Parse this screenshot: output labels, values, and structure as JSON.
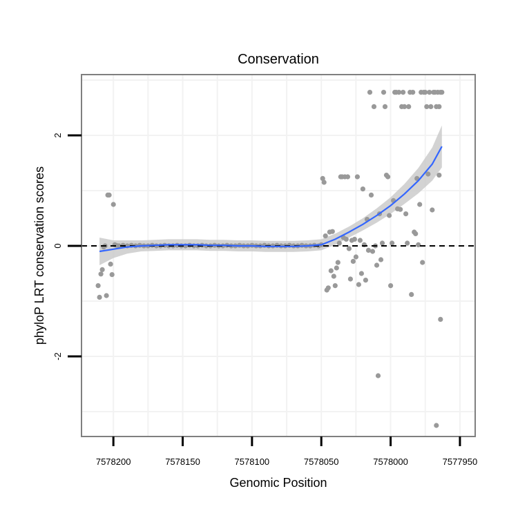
{
  "chart_data": {
    "type": "scatter",
    "title": "Conservation",
    "xlabel": "Genomic Position",
    "ylabel": "phyloP LRT conservation scores",
    "xlim": [
      7578223,
      7577939
    ],
    "ylim": [
      -3.45,
      3.1
    ],
    "x_reversed": true,
    "x_ticks": [
      7578200,
      7578150,
      7578100,
      7578050,
      7578000,
      7577950
    ],
    "x_tick_labels": [
      "7578200",
      "7578150",
      "7578100",
      "7578050",
      "7578000",
      "7577950"
    ],
    "y_ticks": [
      -2,
      0,
      2
    ],
    "y_tick_labels": [
      "-2",
      "0",
      "2"
    ],
    "reference_line": {
      "y": 0,
      "style": "dashed"
    },
    "colors": {
      "points": "#999999",
      "smooth": "#3366ff",
      "ribbon": "#c8c8c8",
      "grid": "#f2f2f2",
      "frame": "#7f7f7f"
    },
    "points": [
      {
        "x": 7578211,
        "y": -0.72
      },
      {
        "x": 7578210,
        "y": -0.93
      },
      {
        "x": 7578209,
        "y": -0.51
      },
      {
        "x": 7578208,
        "y": -0.43
      },
      {
        "x": 7578207,
        "y": -0.02
      },
      {
        "x": 7578206,
        "y": 0.0
      },
      {
        "x": 7578205,
        "y": -0.9
      },
      {
        "x": 7578204,
        "y": 0.92
      },
      {
        "x": 7578203,
        "y": 0.92
      },
      {
        "x": 7578202,
        "y": -0.33
      },
      {
        "x": 7578201,
        "y": -0.52
      },
      {
        "x": 7578200,
        "y": 0.75
      },
      {
        "x": 7578199,
        "y": 0.02
      },
      {
        "x": 7578198,
        "y": 0.01
      },
      {
        "x": 7578196,
        "y": 0.0
      },
      {
        "x": 7578193,
        "y": 0.01
      },
      {
        "x": 7578190,
        "y": 0.0
      },
      {
        "x": 7578187,
        "y": 0.01
      },
      {
        "x": 7578184,
        "y": 0.0
      },
      {
        "x": 7578181,
        "y": 0.01
      },
      {
        "x": 7578178,
        "y": 0.0
      },
      {
        "x": 7578175,
        "y": 0.0
      },
      {
        "x": 7578172,
        "y": 0.01
      },
      {
        "x": 7578169,
        "y": 0.0
      },
      {
        "x": 7578166,
        "y": 0.0
      },
      {
        "x": 7578163,
        "y": 0.01
      },
      {
        "x": 7578160,
        "y": 0.0
      },
      {
        "x": 7578157,
        "y": 0.0
      },
      {
        "x": 7578154,
        "y": 0.01
      },
      {
        "x": 7578151,
        "y": 0.0
      },
      {
        "x": 7578148,
        "y": 0.0
      },
      {
        "x": 7578145,
        "y": 0.01
      },
      {
        "x": 7578142,
        "y": 0.0
      },
      {
        "x": 7578139,
        "y": 0.0
      },
      {
        "x": 7578136,
        "y": 0.01
      },
      {
        "x": 7578133,
        "y": 0.0
      },
      {
        "x": 7578130,
        "y": 0.0
      },
      {
        "x": 7578127,
        "y": 0.01
      },
      {
        "x": 7578124,
        "y": 0.0
      },
      {
        "x": 7578121,
        "y": 0.0
      },
      {
        "x": 7578118,
        "y": 0.01
      },
      {
        "x": 7578115,
        "y": 0.0
      },
      {
        "x": 7578112,
        "y": 0.0
      },
      {
        "x": 7578109,
        "y": 0.01
      },
      {
        "x": 7578106,
        "y": 0.0
      },
      {
        "x": 7578103,
        "y": 0.0
      },
      {
        "x": 7578100,
        "y": 0.01
      },
      {
        "x": 7578097,
        "y": 0.0
      },
      {
        "x": 7578094,
        "y": 0.0
      },
      {
        "x": 7578091,
        "y": 0.01
      },
      {
        "x": 7578088,
        "y": 0.0
      },
      {
        "x": 7578085,
        "y": 0.0
      },
      {
        "x": 7578082,
        "y": 0.01
      },
      {
        "x": 7578079,
        "y": 0.0
      },
      {
        "x": 7578076,
        "y": 0.0
      },
      {
        "x": 7578073,
        "y": 0.01
      },
      {
        "x": 7578070,
        "y": 0.0
      },
      {
        "x": 7578067,
        "y": 0.0
      },
      {
        "x": 7578064,
        "y": 0.01
      },
      {
        "x": 7578061,
        "y": 0.0
      },
      {
        "x": 7578058,
        "y": 0.0
      },
      {
        "x": 7578055,
        "y": 0.01
      },
      {
        "x": 7578052,
        "y": 0.0
      },
      {
        "x": 7578050,
        "y": 0.02
      },
      {
        "x": 7578049,
        "y": 1.22
      },
      {
        "x": 7578048,
        "y": 1.15
      },
      {
        "x": 7578047,
        "y": 0.18
      },
      {
        "x": 7578046,
        "y": -0.8
      },
      {
        "x": 7578045,
        "y": -0.76
      },
      {
        "x": 7578044,
        "y": 0.25
      },
      {
        "x": 7578043,
        "y": -0.45
      },
      {
        "x": 7578042,
        "y": 0.26
      },
      {
        "x": 7578041,
        "y": -0.55
      },
      {
        "x": 7578040,
        "y": -0.72
      },
      {
        "x": 7578039,
        "y": -0.4
      },
      {
        "x": 7578038,
        "y": -0.3
      },
      {
        "x": 7578037,
        "y": 0.05
      },
      {
        "x": 7578036,
        "y": 1.25
      },
      {
        "x": 7578035,
        "y": 1.25
      },
      {
        "x": 7578034,
        "y": 0.15
      },
      {
        "x": 7578033,
        "y": 1.25
      },
      {
        "x": 7578032,
        "y": 0.12
      },
      {
        "x": 7578031,
        "y": 1.25
      },
      {
        "x": 7578030,
        "y": -0.05
      },
      {
        "x": 7578029,
        "y": -0.6
      },
      {
        "x": 7578028,
        "y": 0.1
      },
      {
        "x": 7578027,
        "y": -0.28
      },
      {
        "x": 7578026,
        "y": 0.12
      },
      {
        "x": 7578025,
        "y": -0.2
      },
      {
        "x": 7578024,
        "y": 1.25
      },
      {
        "x": 7578023,
        "y": -0.7
      },
      {
        "x": 7578022,
        "y": 0.1
      },
      {
        "x": 7578021,
        "y": -0.5
      },
      {
        "x": 7578020,
        "y": 1.03
      },
      {
        "x": 7578019,
        "y": 0.02
      },
      {
        "x": 7578018,
        "y": -0.62
      },
      {
        "x": 7578017,
        "y": 0.48
      },
      {
        "x": 7578016,
        "y": -0.08
      },
      {
        "x": 7578015,
        "y": 2.78
      },
      {
        "x": 7578014,
        "y": 0.92
      },
      {
        "x": 7578013,
        "y": -0.1
      },
      {
        "x": 7578012,
        "y": 2.52
      },
      {
        "x": 7578011,
        "y": 0.0
      },
      {
        "x": 7578010,
        "y": -0.35
      },
      {
        "x": 7578009,
        "y": -2.35
      },
      {
        "x": 7578008,
        "y": 0.58
      },
      {
        "x": 7578007,
        "y": -0.25
      },
      {
        "x": 7578006,
        "y": 0.05
      },
      {
        "x": 7578005,
        "y": 2.78
      },
      {
        "x": 7578004,
        "y": 2.52
      },
      {
        "x": 7578003,
        "y": 1.28
      },
      {
        "x": 7578002,
        "y": 1.25
      },
      {
        "x": 7578001,
        "y": 0.55
      },
      {
        "x": 7578000,
        "y": -0.72
      },
      {
        "x": 7577999,
        "y": 0.05
      },
      {
        "x": 7577998,
        "y": 0.82
      },
      {
        "x": 7577997,
        "y": 2.78
      },
      {
        "x": 7577996,
        "y": 2.78
      },
      {
        "x": 7577995,
        "y": 0.67
      },
      {
        "x": 7577994,
        "y": 2.78
      },
      {
        "x": 7577993,
        "y": 0.66
      },
      {
        "x": 7577992,
        "y": 2.52
      },
      {
        "x": 7577991,
        "y": 2.78
      },
      {
        "x": 7577990,
        "y": 2.52
      },
      {
        "x": 7577989,
        "y": 0.58
      },
      {
        "x": 7577988,
        "y": 0.05
      },
      {
        "x": 7577987,
        "y": 2.52
      },
      {
        "x": 7577986,
        "y": 2.78
      },
      {
        "x": 7577985,
        "y": -0.88
      },
      {
        "x": 7577984,
        "y": 2.78
      },
      {
        "x": 7577983,
        "y": 0.25
      },
      {
        "x": 7577982,
        "y": 0.22
      },
      {
        "x": 7577981,
        "y": 1.22
      },
      {
        "x": 7577980,
        "y": 0.02
      },
      {
        "x": 7577979,
        "y": 0.75
      },
      {
        "x": 7577978,
        "y": 2.78
      },
      {
        "x": 7577977,
        "y": -0.3
      },
      {
        "x": 7577976,
        "y": 2.78
      },
      {
        "x": 7577975,
        "y": 2.78
      },
      {
        "x": 7577974,
        "y": 2.52
      },
      {
        "x": 7577973,
        "y": 1.3
      },
      {
        "x": 7577972,
        "y": 2.78
      },
      {
        "x": 7577971,
        "y": 2.52
      },
      {
        "x": 7577970,
        "y": 0.65
      },
      {
        "x": 7577969,
        "y": 2.78
      },
      {
        "x": 7577968,
        "y": 2.78
      },
      {
        "x": 7577967,
        "y": 2.52
      },
      {
        "x": 7577967,
        "y": -3.25
      },
      {
        "x": 7577966,
        "y": 2.78
      },
      {
        "x": 7577965,
        "y": 2.52
      },
      {
        "x": 7577965,
        "y": 1.28
      },
      {
        "x": 7577964,
        "y": 2.78
      },
      {
        "x": 7577964,
        "y": -1.33
      },
      {
        "x": 7577963,
        "y": 2.78
      }
    ],
    "smooth": {
      "x": [
        7578210,
        7578200,
        7578190,
        7578180,
        7578170,
        7578160,
        7578150,
        7578140,
        7578130,
        7578120,
        7578110,
        7578100,
        7578090,
        7578080,
        7578070,
        7578060,
        7578050,
        7578040,
        7578030,
        7578020,
        7578010,
        7578000,
        7577990,
        7577980,
        7577970,
        7577963
      ],
      "y": [
        -0.1,
        -0.06,
        -0.02,
        0.0,
        0.01,
        0.02,
        0.02,
        0.02,
        0.01,
        0.01,
        0.0,
        0.0,
        -0.01,
        -0.01,
        -0.01,
        0.0,
        0.02,
        0.12,
        0.25,
        0.39,
        0.55,
        0.73,
        0.94,
        1.18,
        1.48,
        1.8
      ],
      "lower": [
        -0.35,
        -0.22,
        -0.14,
        -0.1,
        -0.09,
        -0.08,
        -0.08,
        -0.08,
        -0.09,
        -0.09,
        -0.1,
        -0.1,
        -0.11,
        -0.11,
        -0.11,
        -0.1,
        -0.08,
        0.02,
        0.15,
        0.28,
        0.42,
        0.58,
        0.76,
        0.95,
        1.18,
        1.42
      ],
      "upper": [
        0.15,
        0.1,
        0.1,
        0.1,
        0.11,
        0.12,
        0.12,
        0.12,
        0.11,
        0.11,
        0.1,
        0.1,
        0.09,
        0.09,
        0.09,
        0.1,
        0.12,
        0.22,
        0.35,
        0.5,
        0.68,
        0.88,
        1.12,
        1.41,
        1.78,
        2.18
      ]
    }
  }
}
